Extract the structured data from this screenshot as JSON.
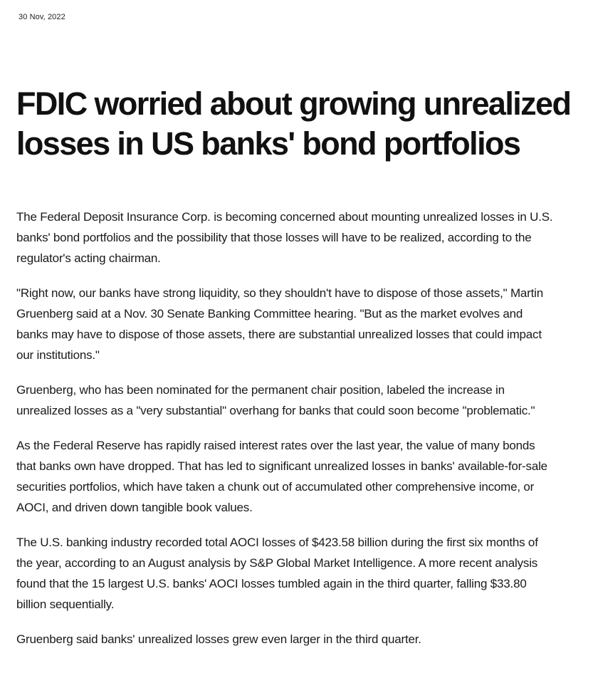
{
  "article": {
    "date": "30 Nov, 2022",
    "headline": "FDIC worried about growing unrealized losses in US banks' bond portfolios",
    "paragraphs": [
      "The Federal Deposit Insurance Corp. is becoming concerned about mounting unrealized losses in U.S. banks' bond portfolios and the possibility that those losses will have to be realized, according to the regulator's acting chairman.",
      "\"Right now, our banks have strong liquidity, so they shouldn't have to dispose of those assets,\" Martin Gruenberg said at a Nov. 30 Senate Banking Committee hearing. \"But as the market evolves and banks may have to dispose of those assets, there are substantial unrealized losses that could impact our institutions.\"",
      "Gruenberg, who has been nominated for the permanent chair position, labeled the increase in unrealized losses as a \"very substantial\" overhang for banks that could soon become \"problematic.\"",
      "As the Federal Reserve has rapidly raised interest rates over the last year, the value of many bonds that banks own have dropped. That has led to significant unrealized losses in banks' available-for-sale securities portfolios, which have taken a chunk out of accumulated other comprehensive income, or AOCI, and driven down tangible book values.",
      "The U.S. banking industry recorded total AOCI losses of $423.58 billion during the first six months of the year, according to an August analysis by S&P Global Market Intelligence. A more recent analysis found that the 15 largest U.S. banks' AOCI losses tumbled again in the third quarter, falling $33.80 billion sequentially.",
      "Gruenberg said banks' unrealized losses grew even larger in the third quarter."
    ]
  }
}
